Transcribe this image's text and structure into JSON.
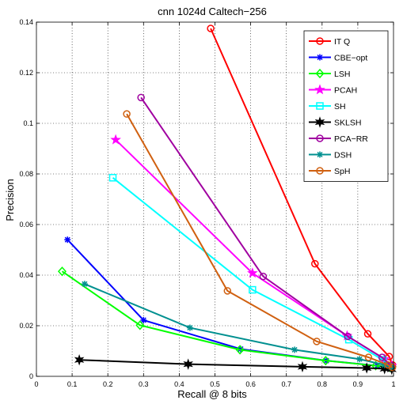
{
  "chart_data": {
    "type": "line",
    "title": "cnn 1024d Caltech−256",
    "xlabel": "Recall @ 8 bits",
    "ylabel": "Precision",
    "xlim": [
      0,
      1
    ],
    "ylim": [
      0,
      0.14
    ],
    "xticks": [
      "0",
      "0.1",
      "0.2",
      "0.3",
      "0.4",
      "0.5",
      "0.6",
      "0.7",
      "0.8",
      "0.9",
      "1"
    ],
    "yticks": [
      "0",
      "0.02",
      "0.04",
      "0.06",
      "0.08",
      "0.1",
      "0.12",
      "0.14"
    ],
    "grid": true,
    "legend_position": "top-right",
    "series": [
      {
        "name": "IT Q",
        "color": "#ff0000",
        "marker": "circle",
        "x": [
          0.488,
          0.78,
          0.928,
          0.988,
          0.997
        ],
        "y": [
          0.1375,
          0.0445,
          0.0168,
          0.0078,
          0.0045
        ]
      },
      {
        "name": "CBE−opt",
        "color": "#0000ff",
        "marker": "asterisk",
        "x": [
          0.087,
          0.3,
          0.572,
          0.812,
          0.955,
          0.99
        ],
        "y": [
          0.054,
          0.0222,
          0.0108,
          0.0062,
          0.0042,
          0.0035
        ]
      },
      {
        "name": "LSH",
        "color": "#00ff00",
        "marker": "diamond",
        "x": [
          0.072,
          0.29,
          0.57,
          0.81,
          0.95,
          0.99
        ],
        "y": [
          0.0415,
          0.0202,
          0.0105,
          0.0062,
          0.0042,
          0.0035
        ]
      },
      {
        "name": "PCAH",
        "color": "#ff00ff",
        "marker": "star",
        "x": [
          0.222,
          0.605,
          0.87,
          0.975,
          0.995
        ],
        "y": [
          0.0935,
          0.0408,
          0.016,
          0.0068,
          0.0042
        ]
      },
      {
        "name": "SH",
        "color": "#00ffff",
        "marker": "square",
        "x": [
          0.214,
          0.605,
          0.875,
          0.97,
          0.99
        ],
        "y": [
          0.0785,
          0.0342,
          0.0145,
          0.0065,
          0.0038
        ]
      },
      {
        "name": "SKLSH",
        "color": "#000000",
        "marker": "star6",
        "x": [
          0.12,
          0.425,
          0.745,
          0.925,
          0.975,
          0.995
        ],
        "y": [
          0.0065,
          0.0048,
          0.0038,
          0.0033,
          0.003,
          0.0028
        ]
      },
      {
        "name": "PCA−RR",
        "color": "#a000a0",
        "marker": "circle",
        "x": [
          0.293,
          0.635,
          0.872,
          0.968,
          0.993
        ],
        "y": [
          0.1102,
          0.0395,
          0.0158,
          0.0075,
          0.0042
        ]
      },
      {
        "name": "DSH",
        "color": "#009090",
        "marker": "asterisk",
        "x": [
          0.135,
          0.43,
          0.723,
          0.905,
          0.975,
          0.995
        ],
        "y": [
          0.0365,
          0.0192,
          0.0105,
          0.0068,
          0.0045,
          0.0035
        ]
      },
      {
        "name": "SpH",
        "color": "#d06010",
        "marker": "circle",
        "x": [
          0.253,
          0.535,
          0.785,
          0.93,
          0.985,
          0.997
        ],
        "y": [
          0.1037,
          0.0338,
          0.0138,
          0.0075,
          0.0045,
          0.0035
        ]
      }
    ]
  }
}
